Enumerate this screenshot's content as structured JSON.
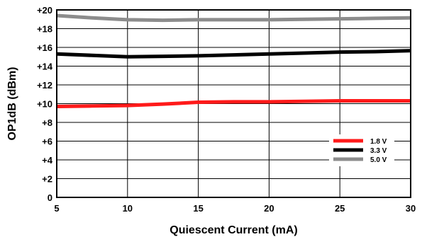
{
  "chart_data": {
    "type": "line",
    "title": "",
    "xlabel": "Quiescent Current (mA)",
    "ylabel": "OP1dB (dBm)",
    "xlim": [
      5,
      30
    ],
    "ylim": [
      0,
      20
    ],
    "xticks": [
      5,
      10,
      15,
      20,
      25,
      30
    ],
    "xtick_labels": [
      "5",
      "10",
      "15",
      "20",
      "25",
      "30"
    ],
    "yticks": [
      0,
      2,
      4,
      6,
      8,
      10,
      12,
      14,
      16,
      18,
      20
    ],
    "ytick_labels": [
      "0",
      "+2",
      "+4",
      "+6",
      "+8",
      "+10",
      "+12",
      "+14",
      "+16",
      "+18",
      "+20"
    ],
    "grid": true,
    "legend_position": "lower-right",
    "series": [
      {
        "name": "1.8 V",
        "color": "#ff1a1a",
        "x": [
          5,
          7.5,
          10,
          12.5,
          15,
          17.5,
          20,
          22.5,
          25,
          27.5,
          30
        ],
        "y": [
          9.7,
          9.75,
          9.8,
          9.95,
          10.15,
          10.2,
          10.2,
          10.25,
          10.3,
          10.3,
          10.3
        ]
      },
      {
        "name": "3.3 V",
        "color": "#000000",
        "x": [
          5,
          7.5,
          10,
          12.5,
          15,
          17.5,
          20,
          22.5,
          25,
          27.5,
          30
        ],
        "y": [
          15.3,
          15.15,
          15.0,
          15.05,
          15.1,
          15.2,
          15.3,
          15.4,
          15.5,
          15.55,
          15.65
        ]
      },
      {
        "name": "5.0 V",
        "color": "#8c8c8c",
        "x": [
          5,
          7.5,
          10,
          12.5,
          15,
          17.5,
          20,
          22.5,
          25,
          27.5,
          30
        ],
        "y": [
          19.4,
          19.15,
          18.95,
          18.9,
          18.95,
          18.95,
          18.95,
          19.0,
          19.05,
          19.1,
          19.15
        ]
      }
    ]
  }
}
